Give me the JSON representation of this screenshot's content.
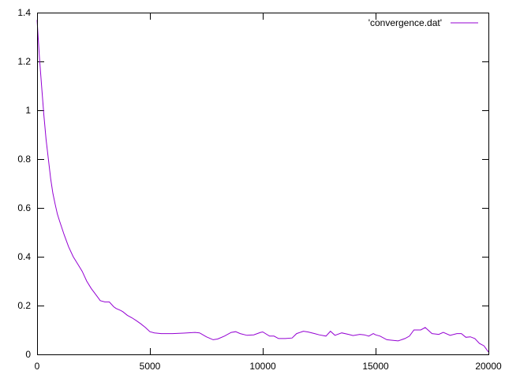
{
  "chart_data": {
    "type": "line",
    "title": "",
    "xlabel": "",
    "ylabel": "",
    "xlim": [
      0,
      20000
    ],
    "ylim": [
      0,
      1.4
    ],
    "x_ticks": [
      0,
      5000,
      10000,
      15000,
      20000
    ],
    "x_tick_labels": [
      "0",
      "5000",
      "10000",
      "15000",
      "20000"
    ],
    "y_ticks": [
      0,
      0.2,
      0.4,
      0.6,
      0.8,
      1,
      1.2,
      1.4
    ],
    "y_tick_labels": [
      "0",
      "0.2",
      "0.4",
      "0.6",
      "0.8",
      "1",
      "1.2",
      "1.4"
    ],
    "grid": false,
    "legend_position": "top-right",
    "series": [
      {
        "name": "'convergence.dat'",
        "color": "#9400d3",
        "x": [
          0,
          100,
          200,
          300,
          400,
          500,
          600,
          700,
          800,
          900,
          1000,
          1200,
          1400,
          1600,
          1800,
          2000,
          2200,
          2400,
          2600,
          2800,
          3000,
          3200,
          3400,
          3500,
          3700,
          3800,
          4000,
          4200,
          4400,
          4600,
          4800,
          5000,
          5200,
          5500,
          6000,
          6500,
          7000,
          7200,
          7500,
          7800,
          8000,
          8300,
          8600,
          8800,
          9000,
          9300,
          9600,
          9900,
          10000,
          10300,
          10500,
          10700,
          11000,
          11300,
          11500,
          11800,
          12000,
          12300,
          12500,
          12800,
          13000,
          13200,
          13500,
          13800,
          14000,
          14300,
          14500,
          14700,
          14900,
          15000,
          15200,
          15500,
          15700,
          16000,
          16300,
          16500,
          16700,
          17000,
          17200,
          17500,
          17800,
          18000,
          18300,
          18600,
          18800,
          19000,
          19200,
          19400,
          19600,
          19700,
          19800,
          20000
        ],
        "y": [
          1.37,
          1.22,
          1.1,
          0.98,
          0.88,
          0.8,
          0.72,
          0.66,
          0.615,
          0.575,
          0.545,
          0.49,
          0.44,
          0.4,
          0.37,
          0.34,
          0.3,
          0.27,
          0.245,
          0.22,
          0.215,
          0.215,
          0.195,
          0.188,
          0.18,
          0.175,
          0.16,
          0.15,
          0.138,
          0.125,
          0.11,
          0.093,
          0.088,
          0.085,
          0.085,
          0.087,
          0.09,
          0.088,
          0.072,
          0.06,
          0.063,
          0.075,
          0.09,
          0.093,
          0.085,
          0.078,
          0.08,
          0.09,
          0.092,
          0.075,
          0.075,
          0.065,
          0.065,
          0.067,
          0.085,
          0.095,
          0.092,
          0.085,
          0.08,
          0.075,
          0.095,
          0.078,
          0.088,
          0.082,
          0.077,
          0.082,
          0.08,
          0.075,
          0.085,
          0.08,
          0.075,
          0.06,
          0.058,
          0.055,
          0.065,
          0.075,
          0.1,
          0.1,
          0.11,
          0.085,
          0.082,
          0.09,
          0.078,
          0.085,
          0.085,
          0.07,
          0.072,
          0.065,
          0.045,
          0.04,
          0.035,
          0.01
        ]
      }
    ]
  }
}
